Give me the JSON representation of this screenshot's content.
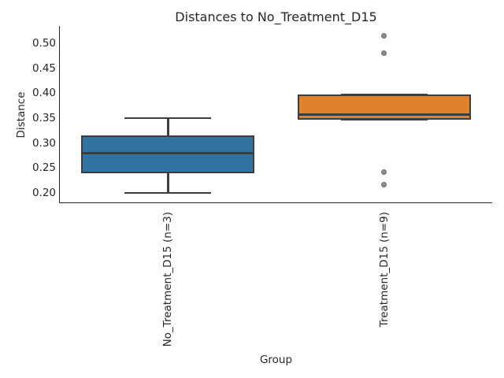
{
  "chart_data": {
    "type": "box",
    "title": "Distances to No_Treatment_D15",
    "xlabel": "Group",
    "ylabel": "Distance",
    "ylim": [
      0.181,
      0.535
    ],
    "yticks": [
      0.2,
      0.25,
      0.3,
      0.35,
      0.4,
      0.45,
      0.5
    ],
    "ytick_labels": [
      "0.20",
      "0.25",
      "0.30",
      "0.35",
      "0.40",
      "0.45",
      "0.50"
    ],
    "grid": false,
    "legend": null,
    "categories": [
      "No_Treatment_D15 (n=3)",
      "Treatment_D15 (n=9)"
    ],
    "series": [
      {
        "name": "No_Treatment_D15 (n=3)",
        "whisker_low": 0.2,
        "q1": 0.24,
        "median": 0.28,
        "q3": 0.315,
        "whisker_high": 0.35,
        "outliers": [],
        "fill": "#3274a1"
      },
      {
        "name": "Treatment_D15 (n=9)",
        "whisker_low": 0.3475,
        "q1": 0.3475,
        "median": 0.3575,
        "q3": 0.3975,
        "whisker_high": 0.3975,
        "outliers": [
          0.515,
          0.481,
          0.242,
          0.216
        ],
        "fill": "#e1812c"
      }
    ],
    "style": {
      "box_edge": "#3d3d3d",
      "flier_fill": "#8c8c8c",
      "flier_edge": "#6e6e6e",
      "spine": "#262626",
      "text": "#262626",
      "background": "#ffffff"
    }
  }
}
